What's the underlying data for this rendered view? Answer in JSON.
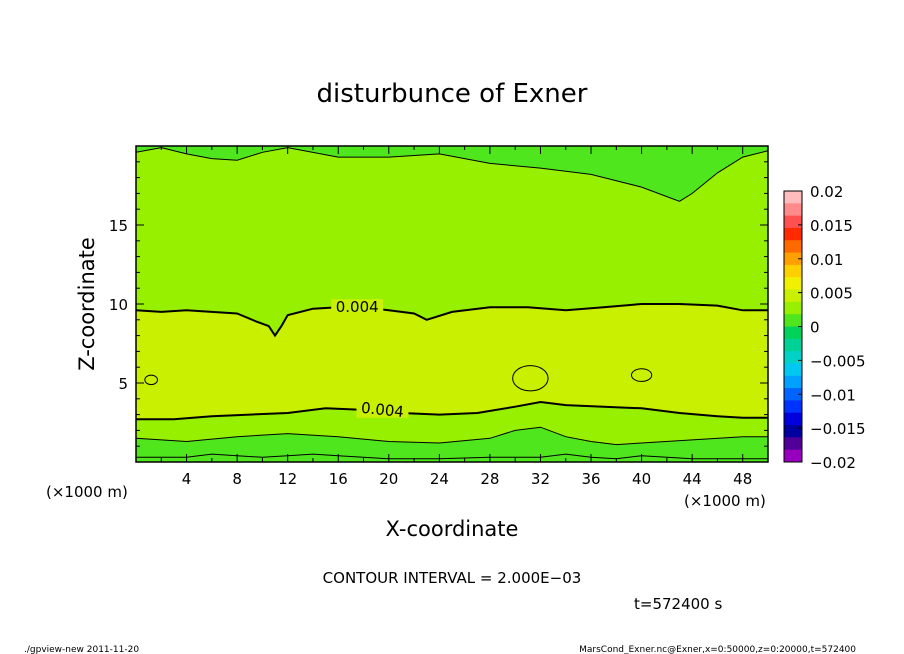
{
  "chart_data": {
    "type": "heatmap",
    "title": "disturbunce of Exner",
    "xlabel": "X-coordinate",
    "ylabel": "Z-coordinate",
    "x_unit_left": "(×1000 m)",
    "x_unit_right": "(×1000 m)",
    "xlim": [
      0,
      50
    ],
    "ylim": [
      0,
      20
    ],
    "xticks": [
      4,
      8,
      12,
      16,
      20,
      24,
      28,
      32,
      36,
      40,
      44,
      48
    ],
    "yticks": [
      5,
      10,
      15
    ],
    "colorbar": {
      "ticks": [
        0.02,
        0.015,
        0.01,
        0.005,
        0,
        -0.005,
        -0.01,
        -0.015,
        -0.02
      ],
      "tick_labels": [
        "0.02",
        "0.015",
        "0.01",
        "0.005",
        "0",
        "−0.005",
        "−0.01",
        "−0.015",
        "−0.02"
      ],
      "colors_high_to_low": [
        "#ffbcbc",
        "#ff8a8a",
        "#ff5050",
        "#ff2a00",
        "#ff6a00",
        "#ffa000",
        "#ffd000",
        "#f0f000",
        "#c8f000",
        "#96f000",
        "#50e61e",
        "#00d25a",
        "#00d296",
        "#00d2c8",
        "#00c8f0",
        "#00a0ff",
        "#0064ff",
        "#0032ff",
        "#0000dc",
        "#0000a0",
        "#500096",
        "#9600be"
      ]
    },
    "series": [
      {
        "name": "0.004",
        "kind": "contour",
        "label": "0.004",
        "x": [
          0,
          2,
          4,
          6,
          8,
          9.5,
          10.5,
          11,
          11.5,
          12,
          14,
          16,
          18,
          20,
          22,
          23,
          25,
          28,
          31,
          34,
          37,
          40,
          43,
          46,
          48,
          50
        ],
        "y": [
          9.6,
          9.5,
          9.6,
          9.5,
          9.4,
          8.9,
          8.6,
          8.0,
          8.6,
          9.3,
          9.7,
          9.8,
          9.8,
          9.6,
          9.4,
          9.0,
          9.5,
          9.8,
          9.8,
          9.6,
          9.8,
          10.0,
          10.0,
          9.9,
          9.6,
          9.6
        ]
      },
      {
        "name": "0.004 (lower)",
        "kind": "contour",
        "label": "0.004",
        "x": [
          0,
          3,
          6,
          9,
          12,
          15,
          18,
          21,
          24,
          27,
          30,
          32,
          34,
          37,
          40,
          43,
          46,
          48,
          50
        ],
        "y": [
          2.7,
          2.7,
          2.9,
          3.0,
          3.1,
          3.4,
          3.3,
          3.1,
          3.0,
          3.1,
          3.5,
          3.8,
          3.6,
          3.5,
          3.4,
          3.1,
          2.9,
          2.8,
          2.8
        ]
      },
      {
        "name": "0.002 (top)",
        "kind": "contour",
        "x": [
          0,
          2,
          4,
          6,
          8,
          10,
          12,
          16,
          20,
          24,
          28,
          32,
          36,
          40,
          42,
          43,
          44,
          46,
          48,
          50
        ],
        "y": [
          19.6,
          19.9,
          19.5,
          19.2,
          19.1,
          19.6,
          19.9,
          19.3,
          19.3,
          19.5,
          18.9,
          18.6,
          18.2,
          17.4,
          16.8,
          16.5,
          17.0,
          18.3,
          19.3,
          19.7
        ]
      },
      {
        "name": "0.002 (bottom)",
        "kind": "contour",
        "x": [
          0,
          4,
          8,
          12,
          16,
          20,
          24,
          28,
          30,
          32,
          34,
          36,
          38,
          40,
          44,
          48,
          50
        ],
        "y": [
          1.5,
          1.3,
          1.6,
          1.8,
          1.6,
          1.3,
          1.2,
          1.5,
          2.0,
          2.2,
          1.6,
          1.3,
          1.1,
          1.2,
          1.4,
          1.6,
          1.6
        ]
      },
      {
        "name": "0 (bottom)",
        "kind": "contour",
        "x": [
          0,
          4,
          6,
          8,
          10,
          12,
          14,
          16,
          20,
          24,
          28,
          32,
          34,
          36,
          38,
          40,
          42,
          44,
          48,
          50
        ],
        "y": [
          0.3,
          0.3,
          0.5,
          0.4,
          0.3,
          0.4,
          0.5,
          0.4,
          0.2,
          0.2,
          0.3,
          0.3,
          0.5,
          0.3,
          0.2,
          0.4,
          0.3,
          0.2,
          0.2,
          0.2
        ]
      },
      {
        "name": "0.006 (closed, x=1)",
        "kind": "closed",
        "cx": 1.2,
        "cy": 5.2,
        "rx": 0.5,
        "ry": 0.3
      },
      {
        "name": "0.006 (closed, x=31)",
        "kind": "closed",
        "cx": 31.2,
        "cy": 5.3,
        "rx": 1.4,
        "ry": 0.8
      },
      {
        "name": "0.006 (closed, x=40)",
        "kind": "closed",
        "cx": 40.0,
        "cy": 5.5,
        "rx": 0.8,
        "ry": 0.4
      }
    ]
  },
  "footer": {
    "contour_interval": "CONTOUR INTERVAL = 2.000E−03",
    "time": "t=572400 s",
    "program": "./gpview-new   2011-11-20",
    "source": "MarsCond_Exner.nc@Exner,x=0:50000,z=0:20000,t=572400"
  }
}
